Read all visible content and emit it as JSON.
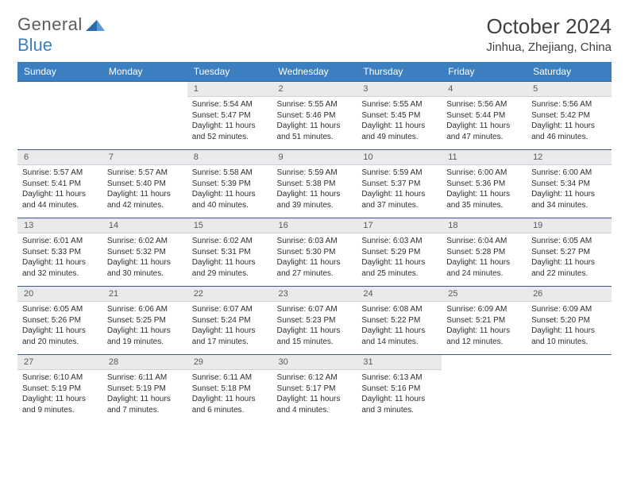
{
  "logo": {
    "text1": "General",
    "text2": "Blue"
  },
  "title": "October 2024",
  "location": "Jinhua, Zhejiang, China",
  "weekday_labels": [
    "Sunday",
    "Monday",
    "Tuesday",
    "Wednesday",
    "Thursday",
    "Friday",
    "Saturday"
  ],
  "colors": {
    "header_bg": "#3b7fc0",
    "header_text": "#ffffff",
    "daynum_bg": "#e9eaec",
    "daynum_text": "#58595b",
    "body_text": "#2e2e2e",
    "title_text": "#404040",
    "rule": "#3b5a7a"
  },
  "weeks": [
    [
      null,
      null,
      {
        "n": "1",
        "sr": "5:54 AM",
        "ss": "5:47 PM",
        "dl": "11 hours and 52 minutes."
      },
      {
        "n": "2",
        "sr": "5:55 AM",
        "ss": "5:46 PM",
        "dl": "11 hours and 51 minutes."
      },
      {
        "n": "3",
        "sr": "5:55 AM",
        "ss": "5:45 PM",
        "dl": "11 hours and 49 minutes."
      },
      {
        "n": "4",
        "sr": "5:56 AM",
        "ss": "5:44 PM",
        "dl": "11 hours and 47 minutes."
      },
      {
        "n": "5",
        "sr": "5:56 AM",
        "ss": "5:42 PM",
        "dl": "11 hours and 46 minutes."
      }
    ],
    [
      {
        "n": "6",
        "sr": "5:57 AM",
        "ss": "5:41 PM",
        "dl": "11 hours and 44 minutes."
      },
      {
        "n": "7",
        "sr": "5:57 AM",
        "ss": "5:40 PM",
        "dl": "11 hours and 42 minutes."
      },
      {
        "n": "8",
        "sr": "5:58 AM",
        "ss": "5:39 PM",
        "dl": "11 hours and 40 minutes."
      },
      {
        "n": "9",
        "sr": "5:59 AM",
        "ss": "5:38 PM",
        "dl": "11 hours and 39 minutes."
      },
      {
        "n": "10",
        "sr": "5:59 AM",
        "ss": "5:37 PM",
        "dl": "11 hours and 37 minutes."
      },
      {
        "n": "11",
        "sr": "6:00 AM",
        "ss": "5:36 PM",
        "dl": "11 hours and 35 minutes."
      },
      {
        "n": "12",
        "sr": "6:00 AM",
        "ss": "5:34 PM",
        "dl": "11 hours and 34 minutes."
      }
    ],
    [
      {
        "n": "13",
        "sr": "6:01 AM",
        "ss": "5:33 PM",
        "dl": "11 hours and 32 minutes."
      },
      {
        "n": "14",
        "sr": "6:02 AM",
        "ss": "5:32 PM",
        "dl": "11 hours and 30 minutes."
      },
      {
        "n": "15",
        "sr": "6:02 AM",
        "ss": "5:31 PM",
        "dl": "11 hours and 29 minutes."
      },
      {
        "n": "16",
        "sr": "6:03 AM",
        "ss": "5:30 PM",
        "dl": "11 hours and 27 minutes."
      },
      {
        "n": "17",
        "sr": "6:03 AM",
        "ss": "5:29 PM",
        "dl": "11 hours and 25 minutes."
      },
      {
        "n": "18",
        "sr": "6:04 AM",
        "ss": "5:28 PM",
        "dl": "11 hours and 24 minutes."
      },
      {
        "n": "19",
        "sr": "6:05 AM",
        "ss": "5:27 PM",
        "dl": "11 hours and 22 minutes."
      }
    ],
    [
      {
        "n": "20",
        "sr": "6:05 AM",
        "ss": "5:26 PM",
        "dl": "11 hours and 20 minutes."
      },
      {
        "n": "21",
        "sr": "6:06 AM",
        "ss": "5:25 PM",
        "dl": "11 hours and 19 minutes."
      },
      {
        "n": "22",
        "sr": "6:07 AM",
        "ss": "5:24 PM",
        "dl": "11 hours and 17 minutes."
      },
      {
        "n": "23",
        "sr": "6:07 AM",
        "ss": "5:23 PM",
        "dl": "11 hours and 15 minutes."
      },
      {
        "n": "24",
        "sr": "6:08 AM",
        "ss": "5:22 PM",
        "dl": "11 hours and 14 minutes."
      },
      {
        "n": "25",
        "sr": "6:09 AM",
        "ss": "5:21 PM",
        "dl": "11 hours and 12 minutes."
      },
      {
        "n": "26",
        "sr": "6:09 AM",
        "ss": "5:20 PM",
        "dl": "11 hours and 10 minutes."
      }
    ],
    [
      {
        "n": "27",
        "sr": "6:10 AM",
        "ss": "5:19 PM",
        "dl": "11 hours and 9 minutes."
      },
      {
        "n": "28",
        "sr": "6:11 AM",
        "ss": "5:19 PM",
        "dl": "11 hours and 7 minutes."
      },
      {
        "n": "29",
        "sr": "6:11 AM",
        "ss": "5:18 PM",
        "dl": "11 hours and 6 minutes."
      },
      {
        "n": "30",
        "sr": "6:12 AM",
        "ss": "5:17 PM",
        "dl": "11 hours and 4 minutes."
      },
      {
        "n": "31",
        "sr": "6:13 AM",
        "ss": "5:16 PM",
        "dl": "11 hours and 3 minutes."
      },
      null,
      null
    ]
  ],
  "labels": {
    "sunrise": "Sunrise:",
    "sunset": "Sunset:",
    "daylight": "Daylight:"
  }
}
